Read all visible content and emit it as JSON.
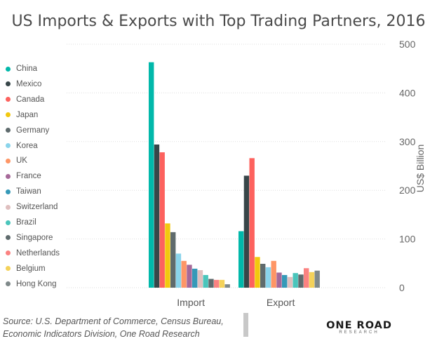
{
  "chart_data": {
    "type": "bar",
    "title": "US Imports & Exports with Top Trading Partners, 2016",
    "ylabel": "US$ Billion",
    "xlabel": "",
    "ylim": [
      0,
      500
    ],
    "yticks": [
      0,
      100,
      200,
      300,
      400,
      500
    ],
    "y_axis_side": "right",
    "grid": true,
    "legend_position": "left",
    "categories": [
      "Import",
      "Export"
    ],
    "series": [
      {
        "name": "China",
        "color": "#01b8aa",
        "values": [
          463,
          116
        ]
      },
      {
        "name": "Mexico",
        "color": "#374649",
        "values": [
          294,
          230
        ]
      },
      {
        "name": "Canada",
        "color": "#fd625e",
        "values": [
          278,
          266
        ]
      },
      {
        "name": "Japan",
        "color": "#f2c80f",
        "values": [
          132,
          63
        ]
      },
      {
        "name": "Germany",
        "color": "#5f6b6d",
        "values": [
          114,
          49
        ]
      },
      {
        "name": "Korea",
        "color": "#8ad4eb",
        "values": [
          70,
          42
        ]
      },
      {
        "name": "UK",
        "color": "#fe9666",
        "values": [
          55,
          55
        ]
      },
      {
        "name": "France",
        "color": "#a66999",
        "values": [
          47,
          31
        ]
      },
      {
        "name": "Taiwan",
        "color": "#3599b8",
        "values": [
          39,
          26
        ]
      },
      {
        "name": "Switzerland",
        "color": "#dfbfbf",
        "values": [
          36,
          22
        ]
      },
      {
        "name": "Brazil",
        "color": "#4ac5bb",
        "values": [
          26,
          30
        ]
      },
      {
        "name": "Singapore",
        "color": "#5f6b6d",
        "values": [
          18,
          27
        ]
      },
      {
        "name": "Netherlands",
        "color": "#fb8281",
        "values": [
          16,
          40
        ]
      },
      {
        "name": "Belgium",
        "color": "#f4d25a",
        "values": [
          16,
          32
        ]
      },
      {
        "name": "Hong Kong",
        "color": "#7f898a",
        "values": [
          7,
          35
        ]
      }
    ]
  },
  "source": {
    "line1": "Source: U.S. Department of Commerce, Census Bureau,",
    "line2": "Economic Indicators Division, One Road Research"
  },
  "logo": {
    "main": "ONE ROAD",
    "sub": "RESEARCH"
  }
}
